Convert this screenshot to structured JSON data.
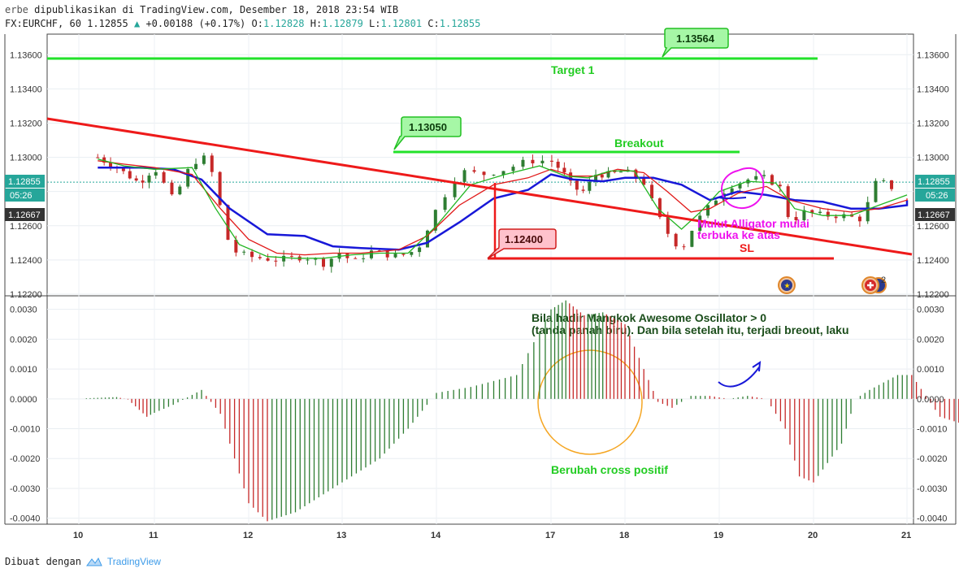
{
  "header": {
    "author": "erbe",
    "published": "dipublikasikan di TradingView.com, Desember 18, 2018 23:54 WIB",
    "symbol": "FX:EURCHF, 60",
    "last": "1.12855",
    "change": "+0.00188 (+0.17%)",
    "ohlc": [
      {
        "k": "O:",
        "v": "1.12828"
      },
      {
        "k": "H:",
        "v": "1.12879"
      },
      {
        "k": "L:",
        "v": "1.12801"
      },
      {
        "k": "C:",
        "v": "1.12855"
      }
    ]
  },
  "footer": {
    "made_with": "Dibuat dengan",
    "brand": "TradingView"
  },
  "chart_data": [
    {
      "type": "candlestick",
      "y_ticks": [
        "1.13600",
        "1.13400",
        "1.13200",
        "1.13000",
        "1.12800",
        "1.12600",
        "1.12400",
        "1.12200"
      ],
      "ylim": [
        1.122,
        1.1372
      ],
      "x_ticks": [
        "10",
        "11",
        "12",
        "13",
        "14",
        "17",
        "18",
        "19",
        "20",
        "21"
      ],
      "price_badges": {
        "current": "1.12855",
        "countdown": "05:26",
        "alligator": "1.12667"
      },
      "ohlc_path": [
        [
          10.25,
          1.13
        ],
        [
          10.5,
          1.1294
        ],
        [
          10.8,
          1.1285
        ],
        [
          11.0,
          1.1294
        ],
        [
          11.2,
          1.1275
        ],
        [
          11.4,
          1.1297
        ],
        [
          11.55,
          1.13
        ],
        [
          11.65,
          1.1285
        ],
        [
          11.75,
          1.1255
        ],
        [
          11.85,
          1.1245
        ],
        [
          12.0,
          1.1242
        ],
        [
          12.3,
          1.124
        ],
        [
          12.6,
          1.1242
        ],
        [
          12.8,
          1.1238
        ],
        [
          13.0,
          1.1245
        ],
        [
          13.1,
          1.1238
        ],
        [
          13.3,
          1.1245
        ],
        [
          13.4,
          1.1244
        ],
        [
          13.6,
          1.1242
        ],
        [
          13.8,
          1.1246
        ],
        [
          14.0,
          1.127
        ],
        [
          14.2,
          1.1292
        ],
        [
          14.4,
          1.129
        ],
        [
          14.6,
          1.1293
        ],
        [
          14.8,
          1.1298
        ],
        [
          15.0,
          1.1298
        ],
        [
          15.15,
          1.1292
        ],
        [
          15.3,
          1.1282
        ],
        [
          15.45,
          1.128
        ],
        [
          15.6,
          1.129
        ],
        [
          15.8,
          1.129
        ],
        [
          16.0,
          1.1292
        ],
        [
          16.2,
          1.1285
        ],
        [
          16.4,
          1.126
        ],
        [
          16.5,
          1.1252
        ],
        [
          16.6,
          1.1246
        ],
        [
          16.75,
          1.1262
        ],
        [
          16.95,
          1.1275
        ],
        [
          17.1,
          1.1283
        ],
        [
          17.3,
          1.1287
        ],
        [
          17.5,
          1.1288
        ],
        [
          17.65,
          1.1282
        ],
        [
          17.75,
          1.1262
        ],
        [
          17.9,
          1.1268
        ],
        [
          18.1,
          1.1266
        ],
        [
          18.3,
          1.1266
        ],
        [
          18.5,
          1.1264
        ],
        [
          18.6,
          1.1275
        ],
        [
          18.7,
          1.129
        ],
        [
          18.8,
          1.128
        ],
        [
          18.9,
          1.1287
        ]
      ],
      "series": [
        {
          "name": "",
          "color": "#1818d8",
          "values": [
            [
              10.25,
              1.1294
            ],
            [
              10.8,
              1.1294
            ],
            [
              11.2,
              1.1293
            ],
            [
              11.5,
              1.1287
            ],
            [
              11.8,
              1.127
            ],
            [
              12.2,
              1.1255
            ],
            [
              12.6,
              1.1254
            ],
            [
              12.9,
              1.1248
            ],
            [
              13.2,
              1.1247
            ],
            [
              13.6,
              1.1246
            ],
            [
              13.9,
              1.125
            ],
            [
              14.2,
              1.1262
            ],
            [
              14.5,
              1.1276
            ],
            [
              14.8,
              1.1281
            ],
            [
              15.0,
              1.129
            ],
            [
              15.3,
              1.1287
            ],
            [
              15.7,
              1.1286
            ],
            [
              16.0,
              1.1288
            ],
            [
              16.3,
              1.1288
            ],
            [
              16.6,
              1.1284
            ],
            [
              16.9,
              1.1275
            ],
            [
              17.2,
              1.128
            ],
            [
              17.5,
              1.1278
            ],
            [
              17.8,
              1.1275
            ],
            [
              18.1,
              1.1274
            ],
            [
              18.4,
              1.127
            ],
            [
              18.7,
              1.127
            ],
            [
              19.0,
              1.1272
            ],
            [
              19.3,
              1.1275
            ]
          ]
        },
        {
          "name": "",
          "color": "#e01919",
          "values": [
            [
              10.25,
              1.1298
            ],
            [
              10.6,
              1.1296
            ],
            [
              11.0,
              1.1294
            ],
            [
              11.4,
              1.129
            ],
            [
              11.7,
              1.127
            ],
            [
              12.0,
              1.1252
            ],
            [
              12.3,
              1.1244
            ],
            [
              12.6,
              1.1243
            ],
            [
              12.9,
              1.1244
            ],
            [
              13.2,
              1.1244
            ],
            [
              13.6,
              1.1246
            ],
            [
              13.9,
              1.1254
            ],
            [
              14.2,
              1.1272
            ],
            [
              14.5,
              1.1284
            ],
            [
              14.8,
              1.1288
            ],
            [
              15.0,
              1.1293
            ],
            [
              15.3,
              1.1289
            ],
            [
              15.6,
              1.1289
            ],
            [
              15.9,
              1.1293
            ],
            [
              16.2,
              1.1291
            ],
            [
              16.45,
              1.128
            ],
            [
              16.7,
              1.1268
            ],
            [
              16.9,
              1.127
            ],
            [
              17.2,
              1.1279
            ],
            [
              17.5,
              1.1283
            ],
            [
              17.75,
              1.1275
            ],
            [
              18.1,
              1.127
            ],
            [
              18.4,
              1.1268
            ],
            [
              18.7,
              1.127
            ],
            [
              19.0,
              1.1275
            ],
            [
              19.2,
              1.1276
            ]
          ]
        },
        {
          "name": "",
          "color": "#22b522",
          "values": [
            [
              10.25,
              1.1299
            ],
            [
              10.6,
              1.1295
            ],
            [
              11.0,
              1.1293
            ],
            [
              11.4,
              1.1294
            ],
            [
              11.65,
              1.127
            ],
            [
              11.9,
              1.1249
            ],
            [
              12.2,
              1.1242
            ],
            [
              12.5,
              1.1241
            ],
            [
              12.8,
              1.1241
            ],
            [
              13.1,
              1.1243
            ],
            [
              13.4,
              1.1244
            ],
            [
              13.7,
              1.1244
            ],
            [
              14.0,
              1.126
            ],
            [
              14.3,
              1.1284
            ],
            [
              14.6,
              1.129
            ],
            [
              14.9,
              1.1295
            ],
            [
              15.2,
              1.1289
            ],
            [
              15.5,
              1.1288
            ],
            [
              15.8,
              1.1292
            ],
            [
              16.1,
              1.1292
            ],
            [
              16.35,
              1.127
            ],
            [
              16.6,
              1.1258
            ],
            [
              16.8,
              1.1268
            ],
            [
              17.0,
              1.128
            ],
            [
              17.3,
              1.1286
            ],
            [
              17.6,
              1.1285
            ],
            [
              17.8,
              1.127
            ],
            [
              18.1,
              1.1266
            ],
            [
              18.4,
              1.1266
            ],
            [
              18.7,
              1.1272
            ],
            [
              18.9,
              1.1276
            ],
            [
              19.1,
              1.1278
            ]
          ]
        }
      ],
      "annotations": {
        "target_label": "Target 1",
        "target_price": "1.13564",
        "breakout_label": "Breakout",
        "breakout_price": "1.13050",
        "sl_label": "SL",
        "sl_price": "1.12400",
        "alligator_note": [
          "Mulut Alligator mulai",
          "terbuka ke atas"
        ],
        "marker_count": "2"
      }
    },
    {
      "type": "bar",
      "name": "",
      "y_ticks": [
        "0.0030",
        "0.0020",
        "0.0010",
        "0.0000",
        "-0.0010",
        "-0.0020",
        "-0.0030",
        "-0.0040"
      ],
      "ylim": [
        -0.0042,
        0.0034
      ],
      "ao_path": [
        [
          10.1,
          2e-05
        ],
        [
          10.5,
          6e-05
        ],
        [
          10.65,
          -2e-05
        ],
        [
          10.9,
          -0.0006
        ],
        [
          11.2,
          -0.0002
        ],
        [
          11.5,
          0.0003
        ],
        [
          11.7,
          -0.0005
        ],
        [
          12.0,
          -0.0035
        ],
        [
          12.2,
          -0.0041
        ],
        [
          12.5,
          -0.0038
        ],
        [
          12.8,
          -0.0032
        ],
        [
          13.1,
          -0.0026
        ],
        [
          13.4,
          -0.002
        ],
        [
          13.7,
          -0.001
        ],
        [
          14.0,
          0.0002
        ],
        [
          14.3,
          0.0004
        ],
        [
          14.7,
          0.0008
        ],
        [
          15.0,
          0.003
        ],
        [
          15.2,
          0.0033
        ],
        [
          15.45,
          0.0028
        ],
        [
          15.7,
          0.0029
        ],
        [
          16.0,
          0.0025
        ],
        [
          16.2,
          0.001
        ],
        [
          16.35,
          -0.0001
        ],
        [
          16.5,
          -0.0003
        ],
        [
          16.7,
          0.0001
        ],
        [
          16.9,
          0.0001
        ],
        [
          17.1,
          0.0
        ],
        [
          17.3,
          0.0001
        ],
        [
          17.5,
          0.0
        ],
        [
          17.7,
          -0.001
        ],
        [
          17.85,
          -0.0026
        ],
        [
          18.0,
          -0.0028
        ],
        [
          18.3,
          -0.0015
        ],
        [
          18.45,
          0.0
        ],
        [
          18.6,
          0.0003
        ],
        [
          18.9,
          0.0008
        ],
        [
          19.05,
          0.0008
        ],
        [
          19.2,
          0.0001
        ],
        [
          19.35,
          -0.0006
        ],
        [
          19.55,
          -0.0008
        ],
        [
          19.8,
          -0.0005
        ],
        [
          20.0,
          -0.0008
        ],
        [
          20.2,
          -0.0003
        ],
        [
          20.4,
          0.0009
        ],
        [
          20.55,
          0.001
        ]
      ],
      "annotations": {
        "note": [
          "Bila hadir Mangkok Awesome Oscillator > 0",
          "(tanda panah biru). Dan bila  setelah itu, terjadi breout, laku"
        ],
        "cross_label": "Berubah cross positif"
      }
    }
  ],
  "colors": {
    "up": "#2e7d32",
    "down": "#c62828",
    "green_line": "#22e22a",
    "red_line": "#ee1a1a",
    "magenta": "#ee11ee",
    "orange": "#f5a623"
  }
}
